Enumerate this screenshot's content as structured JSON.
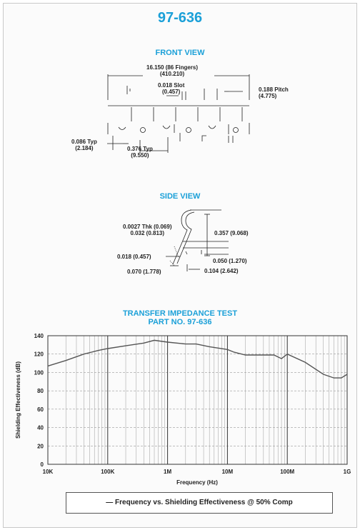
{
  "part_number": "97-636",
  "front_view": {
    "title": "FRONT VIEW",
    "overall_length": "16.150 (86 Fingers)",
    "overall_length_mm": "(410.210)",
    "slot": "0.018 Slot",
    "slot_mm": "(0.457)",
    "pitch": "0.188 Pitch",
    "pitch_mm": "(4.775)",
    "typ_small": "0.086 Typ",
    "typ_small_mm": "(2.184)",
    "typ_large": "0.376 Typ",
    "typ_large_mm": "(9.550)"
  },
  "side_view": {
    "title": "SIDE VIEW",
    "thk": "0.0027 Thk (0.069)",
    "dim_032": "0.032 (0.813)",
    "height": "0.357 (9.068)",
    "dim_018": "0.018 (0.457)",
    "dim_050": "0.050 (1.270)",
    "dim_070": "0.070 (1.778)",
    "dim_104": "0.104 (2.642)"
  },
  "chart_data": {
    "type": "line",
    "title": "TRANSFER IMPEDANCE TEST",
    "subtitle": "PART NO. 97-636",
    "xlabel": "Frequency (Hz)",
    "ylabel": "Shielding Effectiveness (dB)",
    "x_scale": "log",
    "x_ticks": [
      "10K",
      "100K",
      "1M",
      "10M",
      "100M",
      "1G"
    ],
    "xlim": [
      10000,
      1000000000
    ],
    "ylim": [
      0,
      140
    ],
    "y_ticks": [
      0,
      20,
      40,
      60,
      80,
      100,
      120,
      140
    ],
    "grid": true,
    "series": [
      {
        "name": "Frequency vs. Shielding Effectiveness @ 50% Comp",
        "color": "#555555",
        "x": [
          10000,
          20000,
          40000,
          70000,
          100000,
          200000,
          400000,
          600000,
          1000000,
          2000000,
          3000000,
          5000000,
          10000000,
          13000000,
          20000000,
          40000000,
          60000000,
          80000000,
          100000000,
          200000000,
          400000000,
          600000000,
          800000000,
          1000000000
        ],
        "y": [
          107,
          113,
          120,
          124,
          126,
          129,
          132,
          135,
          133,
          131,
          131,
          128,
          125,
          122,
          119,
          119,
          119,
          115,
          120,
          111,
          98,
          94,
          94,
          98
        ]
      }
    ],
    "legend_text": "— Frequency vs. Shielding Effectiveness @ 50% Comp",
    "legend_placement": "bottom"
  }
}
